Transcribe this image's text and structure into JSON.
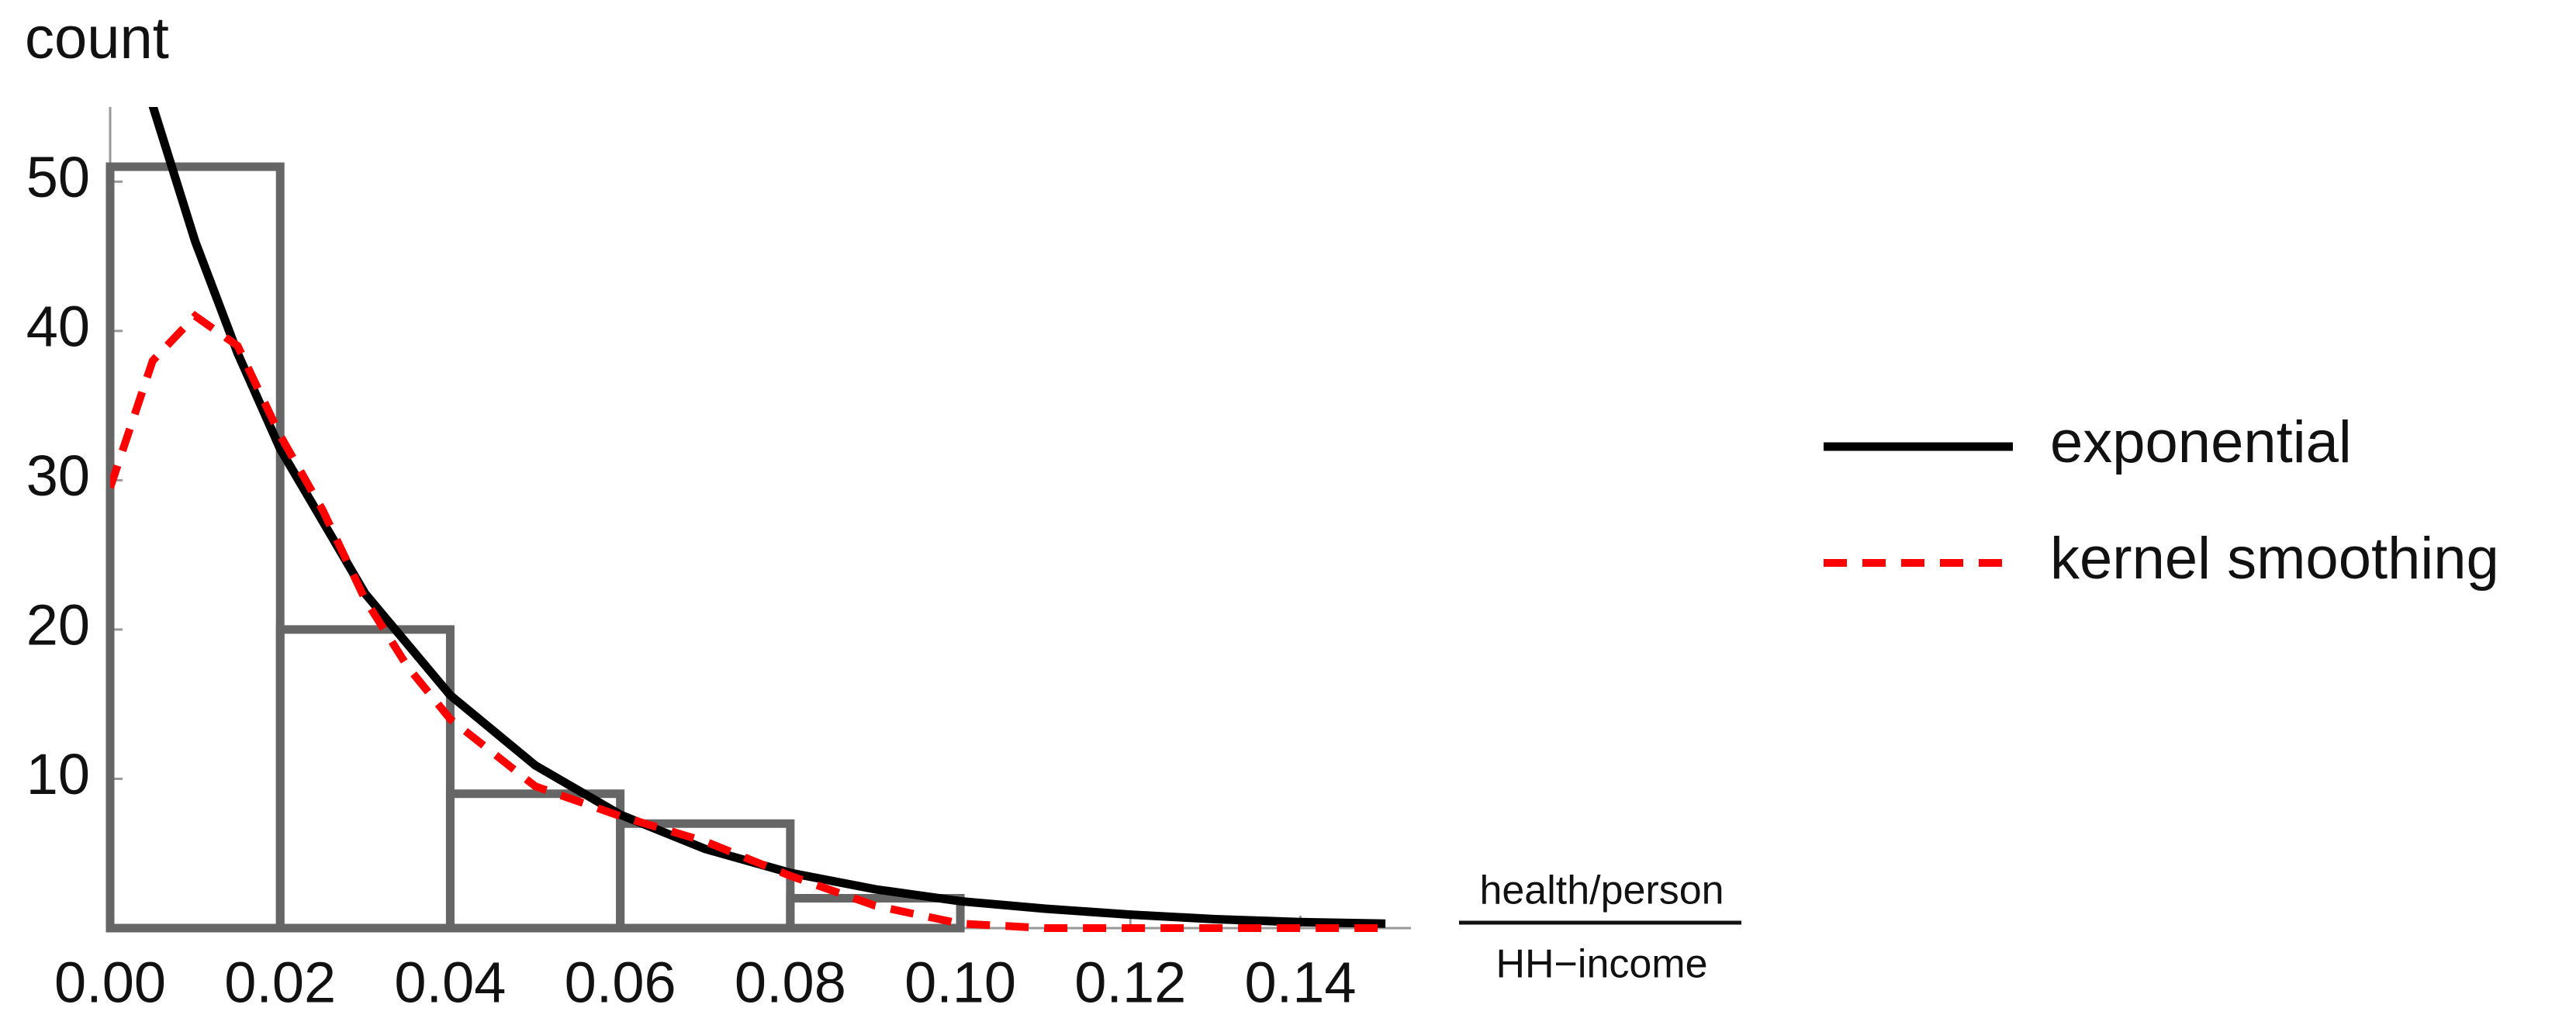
{
  "chart_data": {
    "type": "histogram",
    "y_label": "count",
    "x_label_top": "health/person",
    "x_label_bottom": "HH−income",
    "bins": [
      0,
      0.02,
      0.04,
      0.06,
      0.08,
      0.1
    ],
    "values": [
      51,
      20,
      9,
      7,
      2
    ],
    "color": "#666666",
    "series": [
      {
        "name": "exponential",
        "color": "#000000",
        "dashed": false,
        "x": [
          0.005,
          0.01,
          0.015,
          0.02,
          0.03,
          0.04,
          0.05,
          0.06,
          0.07,
          0.08,
          0.09,
          0.1,
          0.11,
          0.12,
          0.13,
          0.14,
          0.15
        ],
        "values": [
          55.1,
          46.0,
          38.5,
          32.1,
          22.4,
          15.6,
          10.9,
          7.6,
          5.3,
          3.7,
          2.6,
          1.8,
          1.3,
          0.9,
          0.6,
          0.4,
          0.3
        ]
      },
      {
        "name": "kernel smoothing",
        "color": "#ff0000",
        "dashed": true,
        "x": [
          0,
          0.005,
          0.01,
          0.015,
          0.02,
          0.025,
          0.03,
          0.035,
          0.04,
          0.05,
          0.06,
          0.07,
          0.08,
          0.09,
          0.1,
          0.11,
          0.12,
          0.13,
          0.14,
          0.15
        ],
        "values": [
          29.5,
          38,
          41,
          39,
          33,
          28,
          22,
          17.5,
          14,
          9.5,
          7.5,
          5.8,
          3.5,
          1.5,
          0.3,
          0,
          0,
          0,
          0,
          0
        ]
      }
    ],
    "xlim": [
      0,
      0.153
    ],
    "ylim": [
      0,
      55
    ],
    "xticks": [
      {
        "value": 0,
        "label": "0.00"
      },
      {
        "value": 0.02,
        "label": "0.02"
      },
      {
        "value": 0.04,
        "label": "0.04"
      },
      {
        "value": 0.06,
        "label": "0.06"
      },
      {
        "value": 0.08,
        "label": "0.08"
      },
      {
        "value": 0.1,
        "label": "0.10"
      },
      {
        "value": 0.12,
        "label": "0.12"
      },
      {
        "value": 0.14,
        "label": "0.14"
      }
    ],
    "yticks": [
      10,
      20,
      30,
      40,
      50
    ],
    "legend": "right"
  }
}
